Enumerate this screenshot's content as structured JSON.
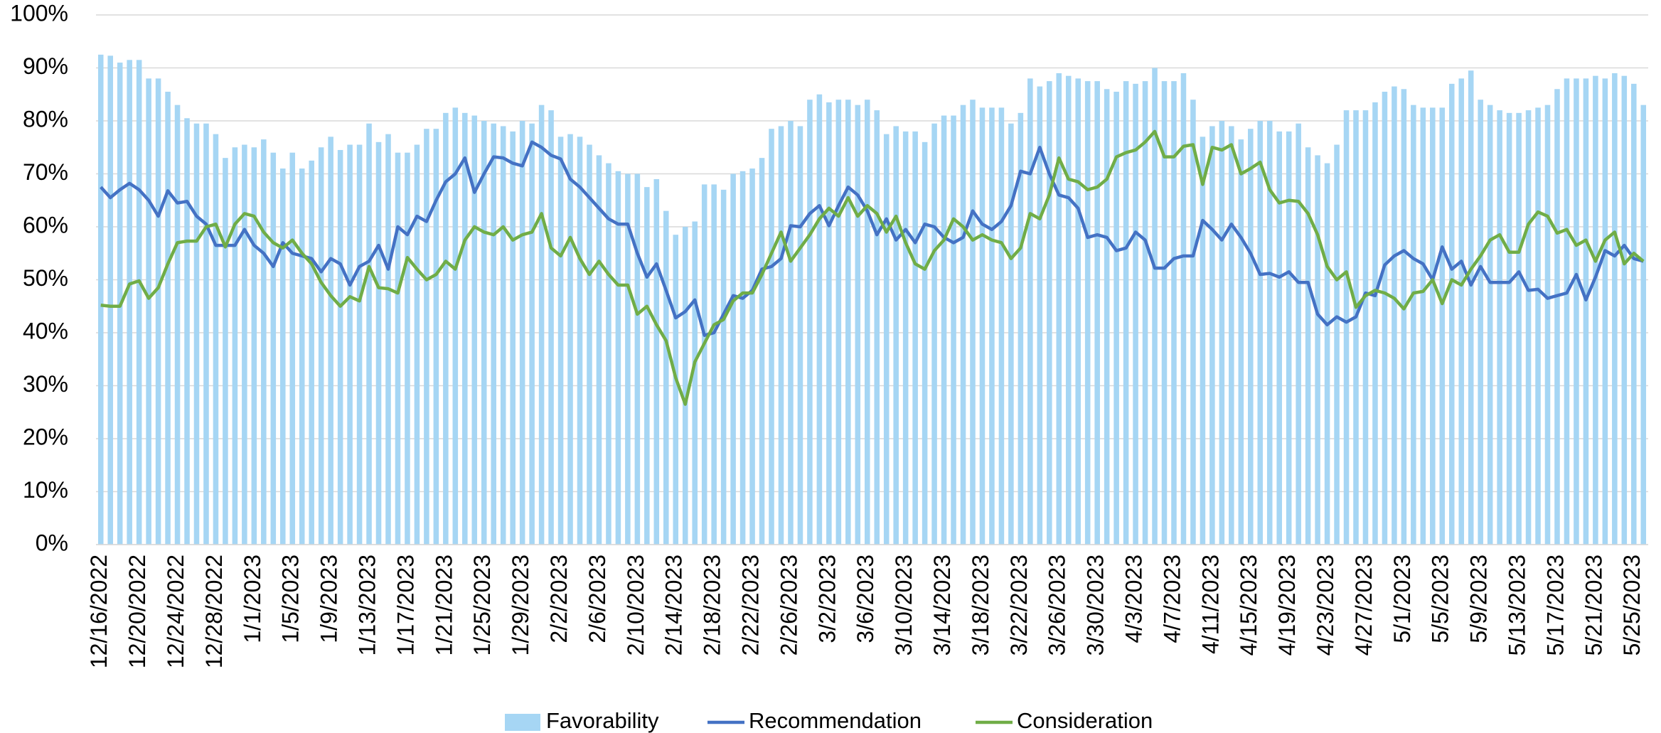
{
  "chart_data": {
    "type": "bar-line",
    "categories": [
      "12/16/2022",
      null,
      null,
      null,
      "12/20/2022",
      null,
      null,
      null,
      "12/24/2022",
      null,
      null,
      null,
      "12/28/2022",
      null,
      null,
      null,
      "1/1/2023",
      null,
      null,
      null,
      "1/5/2023",
      null,
      null,
      null,
      "1/9/2023",
      null,
      null,
      null,
      "1/13/2023",
      null,
      null,
      null,
      "1/17/2023",
      null,
      null,
      null,
      "1/21/2023",
      null,
      null,
      null,
      "1/25/2023",
      null,
      null,
      null,
      "1/29/2023",
      null,
      null,
      null,
      "2/2/2023",
      null,
      null,
      null,
      "2/6/2023",
      null,
      null,
      null,
      "2/10/2023",
      null,
      null,
      null,
      "2/14/2023",
      null,
      null,
      null,
      "2/18/2023",
      null,
      null,
      null,
      "2/22/2023",
      null,
      null,
      null,
      "2/26/2023",
      null,
      null,
      null,
      "3/2/2023",
      null,
      null,
      null,
      "3/6/2023",
      null,
      null,
      null,
      "3/10/2023",
      null,
      null,
      null,
      "3/14/2023",
      null,
      null,
      null,
      "3/18/2023",
      null,
      null,
      null,
      "3/22/2023",
      null,
      null,
      null,
      "3/26/2023",
      null,
      null,
      null,
      "3/30/2023",
      null,
      null,
      null,
      "4/3/2023",
      null,
      null,
      null,
      "4/7/2023",
      null,
      null,
      null,
      "4/11/2023",
      null,
      null,
      null,
      "4/15/2023",
      null,
      null,
      null,
      "4/19/2023",
      null,
      null,
      null,
      "4/23/2023",
      null,
      null,
      null,
      "4/27/2023",
      null,
      null,
      null,
      "5/1/2023",
      null,
      null,
      null,
      "5/5/2023",
      null,
      null,
      null,
      "5/9/2023",
      null,
      null,
      null,
      "5/13/2023",
      null,
      null,
      null,
      "5/17/2023",
      null,
      null,
      null,
      "5/21/2023",
      null,
      null,
      null,
      "5/25/2023",
      null
    ],
    "series": [
      {
        "name": "Favorability",
        "kind": "bar",
        "color": "#a6d6f4",
        "values": [
          92.5,
          92.3,
          91,
          91.5,
          91.5,
          88,
          88,
          85.5,
          83,
          80.5,
          79.5,
          79.5,
          77.5,
          73,
          75,
          75.5,
          75,
          76.5,
          74,
          71,
          74,
          71,
          72.5,
          75,
          77,
          74.5,
          75.5,
          75.5,
          79.5,
          76,
          77.5,
          74,
          74,
          75.5,
          78.5,
          78.5,
          81.5,
          82.5,
          81.5,
          81,
          80,
          79.5,
          79,
          78,
          80,
          79.5,
          83,
          82,
          77,
          77.5,
          77,
          75.5,
          73.5,
          72,
          70.5,
          70,
          70,
          67.5,
          69,
          63,
          58.5,
          60,
          61,
          68,
          68,
          67,
          70,
          70.5,
          71,
          73,
          78.5,
          79,
          80,
          79,
          84,
          85,
          83.5,
          84,
          84,
          83,
          84,
          82,
          77.5,
          79,
          78,
          78,
          76,
          79.5,
          81,
          81,
          83,
          84,
          82.5,
          82.5,
          82.5,
          79.5,
          81.5,
          88,
          86.5,
          87.5,
          89,
          88.5,
          88,
          87.5,
          87.5,
          86,
          85.5,
          87.5,
          87,
          87.5,
          90,
          87.5,
          87.5,
          89,
          84,
          77,
          79,
          80,
          79,
          76.5,
          78.5,
          80,
          80,
          78,
          78,
          79.5,
          75,
          73.5,
          72,
          75.5,
          82,
          82,
          82,
          83.5,
          85.5,
          86.5,
          86,
          83,
          82.5,
          82.5,
          82.5,
          87,
          88,
          89.5,
          84,
          83,
          82,
          81.5,
          81.5,
          82,
          82.5,
          83,
          86,
          88,
          88,
          88,
          88.5,
          88,
          89,
          88.5,
          87,
          83
        ]
      },
      {
        "name": "Recommendation",
        "kind": "line",
        "color": "#4472c4",
        "values": [
          67.5,
          65.5,
          67,
          68.2,
          67,
          65,
          62,
          66.8,
          64.5,
          64.8,
          62,
          60.5,
          56.5,
          56.5,
          56.5,
          59.5,
          56.5,
          55,
          52.5,
          57,
          55,
          54.5,
          54,
          51.5,
          54,
          53,
          49,
          52.5,
          53.5,
          56.5,
          52,
          60,
          58.5,
          62,
          61,
          65,
          68.5,
          70,
          73,
          66.5,
          70,
          73.2,
          73,
          72,
          71.5,
          76,
          75,
          73.5,
          72.8,
          69,
          67.5,
          65.5,
          63.5,
          61.5,
          60.5,
          60.5,
          55,
          50.5,
          53,
          48,
          42.8,
          44,
          46.2,
          39.5,
          40,
          43.5,
          47,
          46.5,
          48,
          52,
          52.5,
          54,
          60.2,
          60,
          62.5,
          64,
          60.2,
          64,
          67.5,
          66,
          63,
          58.5,
          61.5,
          57.5,
          59.5,
          57,
          60.5,
          60,
          58,
          57,
          58,
          63,
          60.5,
          59.5,
          61,
          64,
          70.5,
          70,
          75,
          70,
          66,
          65.5,
          63.5,
          58,
          58.5,
          58,
          55.5,
          56,
          59,
          57.5,
          52.2,
          52.2,
          54,
          54.5,
          54.5,
          61.2,
          59.5,
          57.5,
          60.5,
          58,
          55,
          51,
          51.2,
          50.5,
          51.5,
          49.5,
          49.5,
          43.5,
          41.5,
          43,
          42,
          43,
          47.5,
          47,
          52.8,
          54.5,
          55.5,
          54,
          53,
          50,
          56.2,
          52,
          53.5,
          49,
          52.5,
          49.5,
          49.5,
          49.5,
          51.5,
          48,
          48.2,
          46.5,
          47,
          47.5,
          51,
          46.2,
          50.5,
          55.5,
          54.5,
          56.5,
          54,
          53.5
        ]
      },
      {
        "name": "Consideration",
        "kind": "line",
        "color": "#70ad47",
        "values": [
          45.2,
          45,
          45,
          49.2,
          49.8,
          46.5,
          48.5,
          53,
          57,
          57.3,
          57.3,
          60,
          60.5,
          56.2,
          60.5,
          62.5,
          62,
          59,
          57,
          56,
          57.5,
          55,
          53,
          49.5,
          47,
          45,
          46.8,
          46,
          52.5,
          48.5,
          48.3,
          47.5,
          54.2,
          52,
          50,
          51,
          53.5,
          52,
          57.5,
          60,
          59,
          58.5,
          60,
          57.5,
          58.5,
          59,
          62.5,
          56,
          54.5,
          58,
          54,
          51,
          53.5,
          51,
          49,
          49,
          43.5,
          45,
          41.5,
          38.5,
          31.5,
          26.5,
          34.5,
          38,
          41.5,
          42.5,
          46,
          47.5,
          47.5,
          51,
          55,
          59,
          53.5,
          56,
          58.5,
          61.5,
          63.5,
          62,
          65.5,
          62,
          64,
          62.5,
          59,
          62,
          57,
          53,
          52,
          55.5,
          57.5,
          61.5,
          60,
          57.5,
          58.5,
          57.5,
          57,
          54,
          56,
          62.5,
          61.5,
          66,
          73,
          69,
          68.5,
          67,
          67.5,
          69,
          73.2,
          74,
          74.5,
          76,
          78,
          73.2,
          73.2,
          75.2,
          75.5,
          68,
          75,
          74.5,
          75.5,
          70,
          71,
          72.2,
          67,
          64.5,
          65,
          64.8,
          62.5,
          58.5,
          52.5,
          50,
          51.5,
          44.8,
          47,
          48,
          47.5,
          46.5,
          44.5,
          47.5,
          47.8,
          50,
          45.5,
          50,
          49,
          52,
          54.5,
          57.5,
          58.5,
          55.2,
          55.2,
          60.5,
          62.8,
          62,
          58.8,
          59.5,
          56.5,
          57.5,
          53.5,
          57.5,
          59,
          53,
          55,
          53.5
        ]
      }
    ],
    "ylim": [
      0,
      100
    ],
    "yticks": [
      {
        "value": 0,
        "label": "0%"
      },
      {
        "value": 10,
        "label": "10%"
      },
      {
        "value": 20,
        "label": "20%"
      },
      {
        "value": 30,
        "label": "30%"
      },
      {
        "value": 40,
        "label": "40%"
      },
      {
        "value": 50,
        "label": "50%"
      },
      {
        "value": 60,
        "label": "60%"
      },
      {
        "value": 70,
        "label": "70%"
      },
      {
        "value": 80,
        "label": "80%"
      },
      {
        "value": 90,
        "label": "90%"
      },
      {
        "value": 100,
        "label": "100%"
      }
    ],
    "grid": true,
    "legend": "bottom"
  }
}
